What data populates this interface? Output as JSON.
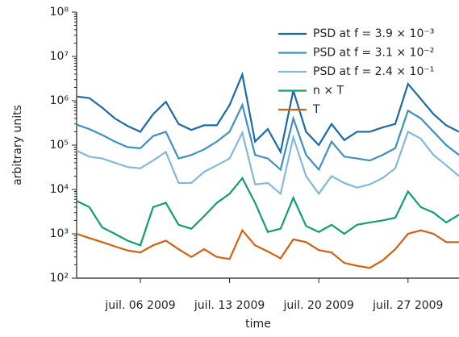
{
  "chart_data": {
    "type": "line",
    "xlabel": "time",
    "ylabel": "arbitrary units",
    "log_y": true,
    "legend": "upper right",
    "x": [
      "2009-07-01",
      "2009-07-02",
      "2009-07-03",
      "2009-07-04",
      "2009-07-05",
      "2009-07-06",
      "2009-07-07",
      "2009-07-08",
      "2009-07-09",
      "2009-07-10",
      "2009-07-11",
      "2009-07-12",
      "2009-07-13",
      "2009-07-14",
      "2009-07-15",
      "2009-07-16",
      "2009-07-17",
      "2009-07-18",
      "2009-07-19",
      "2009-07-20",
      "2009-07-21",
      "2009-07-22",
      "2009-07-23",
      "2009-07-24",
      "2009-07-25",
      "2009-07-26",
      "2009-07-27",
      "2009-07-28",
      "2009-07-29",
      "2009-07-30",
      "2009-07-31"
    ],
    "xlim": [
      "2009-07-01",
      "2009-07-31"
    ],
    "xticks": [
      {
        "value": "2009-07-06",
        "label": "juil. 06 2009"
      },
      {
        "value": "2009-07-13",
        "label": "juil. 13 2009"
      },
      {
        "value": "2009-07-20",
        "label": "juil. 20 2009"
      },
      {
        "value": "2009-07-27",
        "label": "juil. 27 2009"
      }
    ],
    "ylim": [
      100,
      100000000
    ],
    "yticks": [
      {
        "value": 100,
        "label": "10²"
      },
      {
        "value": 1000,
        "label": "10³"
      },
      {
        "value": 10000,
        "label": "10⁴"
      },
      {
        "value": 100000,
        "label": "10⁵"
      },
      {
        "value": 1000000,
        "label": "10⁶"
      },
      {
        "value": 10000000,
        "label": "10⁷"
      },
      {
        "value": 100000000,
        "label": "10⁸"
      }
    ],
    "series": [
      {
        "name": "PSD at f = 3.9 × 10⁻³",
        "color": "#1a6aa6",
        "values": [
          1250000,
          1150000,
          700000,
          400000,
          270000,
          200000,
          500000,
          950000,
          300000,
          220000,
          280000,
          280000,
          800000,
          3900000,
          120000,
          230000,
          70000,
          1700000,
          200000,
          100000,
          300000,
          130000,
          200000,
          200000,
          250000,
          300000,
          2400000,
          1100000,
          500000,
          280000,
          200000
        ]
      },
      {
        "name": "PSD at f = 3.1 × 10⁻²",
        "color": "#3d8fc4",
        "values": [
          290000,
          230000,
          170000,
          120000,
          90000,
          85000,
          160000,
          200000,
          50000,
          60000,
          80000,
          120000,
          200000,
          800000,
          60000,
          50000,
          28000,
          400000,
          60000,
          28000,
          120000,
          55000,
          50000,
          45000,
          60000,
          85000,
          600000,
          400000,
          200000,
          100000,
          60000
        ]
      },
      {
        "name": "PSD at f = 2.4 × 10⁻¹",
        "color": "#82b8da",
        "values": [
          75000,
          55000,
          50000,
          40000,
          32000,
          30000,
          45000,
          70000,
          14000,
          14000,
          25000,
          35000,
          50000,
          190000,
          13000,
          14000,
          8000,
          150000,
          20000,
          8000,
          20000,
          14000,
          11000,
          13000,
          18000,
          30000,
          200000,
          140000,
          60000,
          35000,
          20000
        ]
      },
      {
        "name": "n × T",
        "color": "#119e6f",
        "values": [
          5500,
          4000,
          1400,
          1000,
          700,
          550,
          4000,
          5000,
          1600,
          1300,
          2500,
          5000,
          8000,
          18000,
          5000,
          1100,
          1300,
          6500,
          1500,
          1100,
          1600,
          1000,
          1600,
          1800,
          2000,
          2300,
          9000,
          4000,
          3000,
          1800,
          2700
        ]
      },
      {
        "name": "T",
        "color": "#d2600f",
        "values": [
          1000,
          800,
          650,
          520,
          420,
          380,
          550,
          700,
          450,
          300,
          450,
          300,
          270,
          1200,
          550,
          400,
          280,
          750,
          650,
          430,
          380,
          220,
          190,
          170,
          250,
          450,
          1000,
          1200,
          1000,
          650,
          650
        ]
      }
    ]
  }
}
